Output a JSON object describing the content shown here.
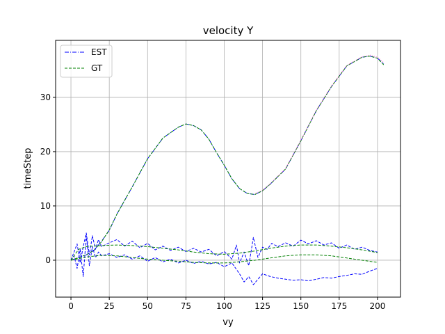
{
  "chart_data": {
    "type": "line",
    "title": "velocity Y",
    "xlabel": "vy",
    "ylabel": "timeStep",
    "xlim": [
      -10,
      215
    ],
    "ylim": [
      -6.8,
      40.5
    ],
    "xticks": [
      0,
      25,
      50,
      75,
      100,
      125,
      150,
      175,
      200
    ],
    "yticks": [
      0,
      10,
      20,
      30
    ],
    "grid": true,
    "legend_position": "top-left",
    "legend": [
      {
        "label": "EST",
        "color": "#0000ff",
        "style": "dashdot"
      },
      {
        "label": "GT",
        "color": "#008000",
        "style": "dashed"
      }
    ],
    "series": [
      {
        "name": "EST",
        "color": "#0000ff",
        "style": "dashdot",
        "x": [
          0,
          5,
          10,
          15,
          20,
          25,
          30,
          40,
          50,
          60,
          70,
          75,
          80,
          85,
          90,
          95,
          100,
          105,
          110,
          115,
          120,
          125,
          130,
          140,
          150,
          160,
          170,
          180,
          190,
          195,
          200,
          204
        ],
        "y": [
          0,
          0.5,
          1.0,
          1.8,
          3.5,
          5.5,
          8.5,
          13.5,
          18.7,
          22.5,
          24.5,
          25.1,
          24.8,
          24.0,
          22.3,
          19.8,
          17.5,
          15.0,
          13.2,
          12.3,
          12.1,
          12.8,
          14.0,
          16.8,
          22.0,
          27.5,
          32.0,
          35.8,
          37.4,
          37.6,
          37.2,
          36.2
        ]
      },
      {
        "name": "GT",
        "color": "#008000",
        "style": "dashed",
        "x": [
          0,
          5,
          10,
          15,
          20,
          25,
          30,
          40,
          50,
          60,
          70,
          75,
          80,
          85,
          90,
          95,
          100,
          105,
          110,
          115,
          120,
          125,
          130,
          140,
          150,
          160,
          170,
          180,
          190,
          195,
          200,
          204
        ],
        "y": [
          0,
          0.5,
          1.0,
          1.8,
          3.4,
          5.6,
          8.5,
          13.5,
          18.7,
          22.5,
          24.5,
          25.1,
          24.8,
          24.0,
          22.3,
          19.8,
          17.5,
          15.0,
          13.2,
          12.3,
          12.1,
          12.8,
          14.0,
          16.8,
          22.0,
          27.5,
          32.0,
          35.8,
          37.4,
          37.6,
          37.2,
          36.0
        ]
      },
      {
        "color": "#0000ff",
        "style": "dashed",
        "x": [
          0,
          2,
          4,
          6,
          8,
          10,
          12,
          14,
          16,
          18,
          20,
          25,
          30,
          35,
          40,
          45,
          50,
          55,
          60,
          65,
          70,
          75,
          80,
          85,
          90,
          95,
          100,
          105,
          108,
          110,
          113,
          116,
          119,
          122,
          125,
          128,
          131,
          135,
          140,
          145,
          150,
          155,
          160,
          165,
          170,
          175,
          180,
          185,
          190,
          195,
          200
        ],
        "y": [
          0,
          1.5,
          3.0,
          -0.5,
          2.5,
          5.0,
          1.0,
          4.5,
          2.0,
          3.8,
          2.5,
          3.2,
          3.8,
          2.6,
          3.5,
          2.3,
          3.1,
          1.9,
          2.6,
          1.8,
          2.4,
          1.6,
          2.2,
          1.5,
          2.0,
          0.8,
          1.6,
          0.2,
          2.8,
          -0.5,
          1.5,
          -1.0,
          4.2,
          0.5,
          2.4,
          2.0,
          3.1,
          2.5,
          3.2,
          2.6,
          3.7,
          3.0,
          3.6,
          2.8,
          3.2,
          2.2,
          2.8,
          2.0,
          2.4,
          1.8,
          1.5
        ]
      },
      {
        "color": "#0000ff",
        "style": "dashed",
        "x": [
          0,
          2,
          4,
          6,
          8,
          10,
          12,
          14,
          16,
          18,
          20,
          25,
          30,
          35,
          40,
          45,
          50,
          55,
          60,
          65,
          70,
          75,
          80,
          85,
          90,
          95,
          100,
          105,
          110,
          113,
          116,
          119,
          122,
          125,
          130,
          135,
          140,
          145,
          150,
          155,
          160,
          165,
          170,
          175,
          180,
          185,
          190,
          195,
          200
        ],
        "y": [
          0,
          0.8,
          -1.5,
          2.0,
          -3.0,
          4.5,
          -1.0,
          2.5,
          0.5,
          1.5,
          0.8,
          1.2,
          0.5,
          1.0,
          0.2,
          0.8,
          -0.2,
          0.5,
          -0.3,
          0.2,
          -0.5,
          0.0,
          -0.6,
          -0.2,
          -0.7,
          -0.4,
          -1.2,
          -0.5,
          -2.5,
          -4.0,
          -3.0,
          -4.5,
          -3.5,
          -2.5,
          -3.0,
          -3.3,
          -3.5,
          -3.7,
          -3.6,
          -3.8,
          -3.5,
          -3.2,
          -3.3,
          -3.0,
          -2.8,
          -2.5,
          -2.6,
          -2.0,
          -1.5
        ]
      },
      {
        "color": "#008000",
        "style": "dashed",
        "x": [
          0,
          5,
          10,
          20,
          30,
          40,
          50,
          60,
          70,
          80,
          90,
          100,
          110,
          120,
          130,
          140,
          150,
          160,
          170,
          180,
          190,
          200
        ],
        "y": [
          0,
          2.0,
          2.5,
          2.7,
          2.8,
          2.7,
          2.5,
          2.2,
          1.9,
          1.5,
          1.2,
          1.1,
          1.3,
          1.7,
          2.2,
          2.6,
          2.8,
          2.8,
          2.6,
          2.3,
          1.9,
          1.4
        ]
      },
      {
        "color": "#008000",
        "style": "dashed",
        "x": [
          0,
          5,
          10,
          20,
          30,
          40,
          50,
          60,
          70,
          80,
          90,
          100,
          110,
          120,
          130,
          140,
          150,
          160,
          170,
          180,
          190,
          200
        ],
        "y": [
          0,
          0.3,
          0.6,
          0.9,
          0.8,
          0.5,
          0.2,
          0.0,
          -0.2,
          -0.4,
          -0.5,
          -0.5,
          -0.3,
          0.0,
          0.4,
          0.8,
          1.0,
          1.0,
          0.8,
          0.4,
          0.0,
          -0.4
        ]
      },
      {
        "color": "#ff66cc",
        "style": "dotted",
        "x": [
          120,
          125,
          130,
          140,
          150,
          160,
          170,
          180,
          190,
          195,
          200,
          204
        ],
        "y": [
          12.3,
          12.9,
          14.1,
          16.9,
          22.1,
          27.6,
          32.1,
          35.9,
          37.5,
          37.8,
          37.4,
          36.4
        ]
      }
    ]
  }
}
